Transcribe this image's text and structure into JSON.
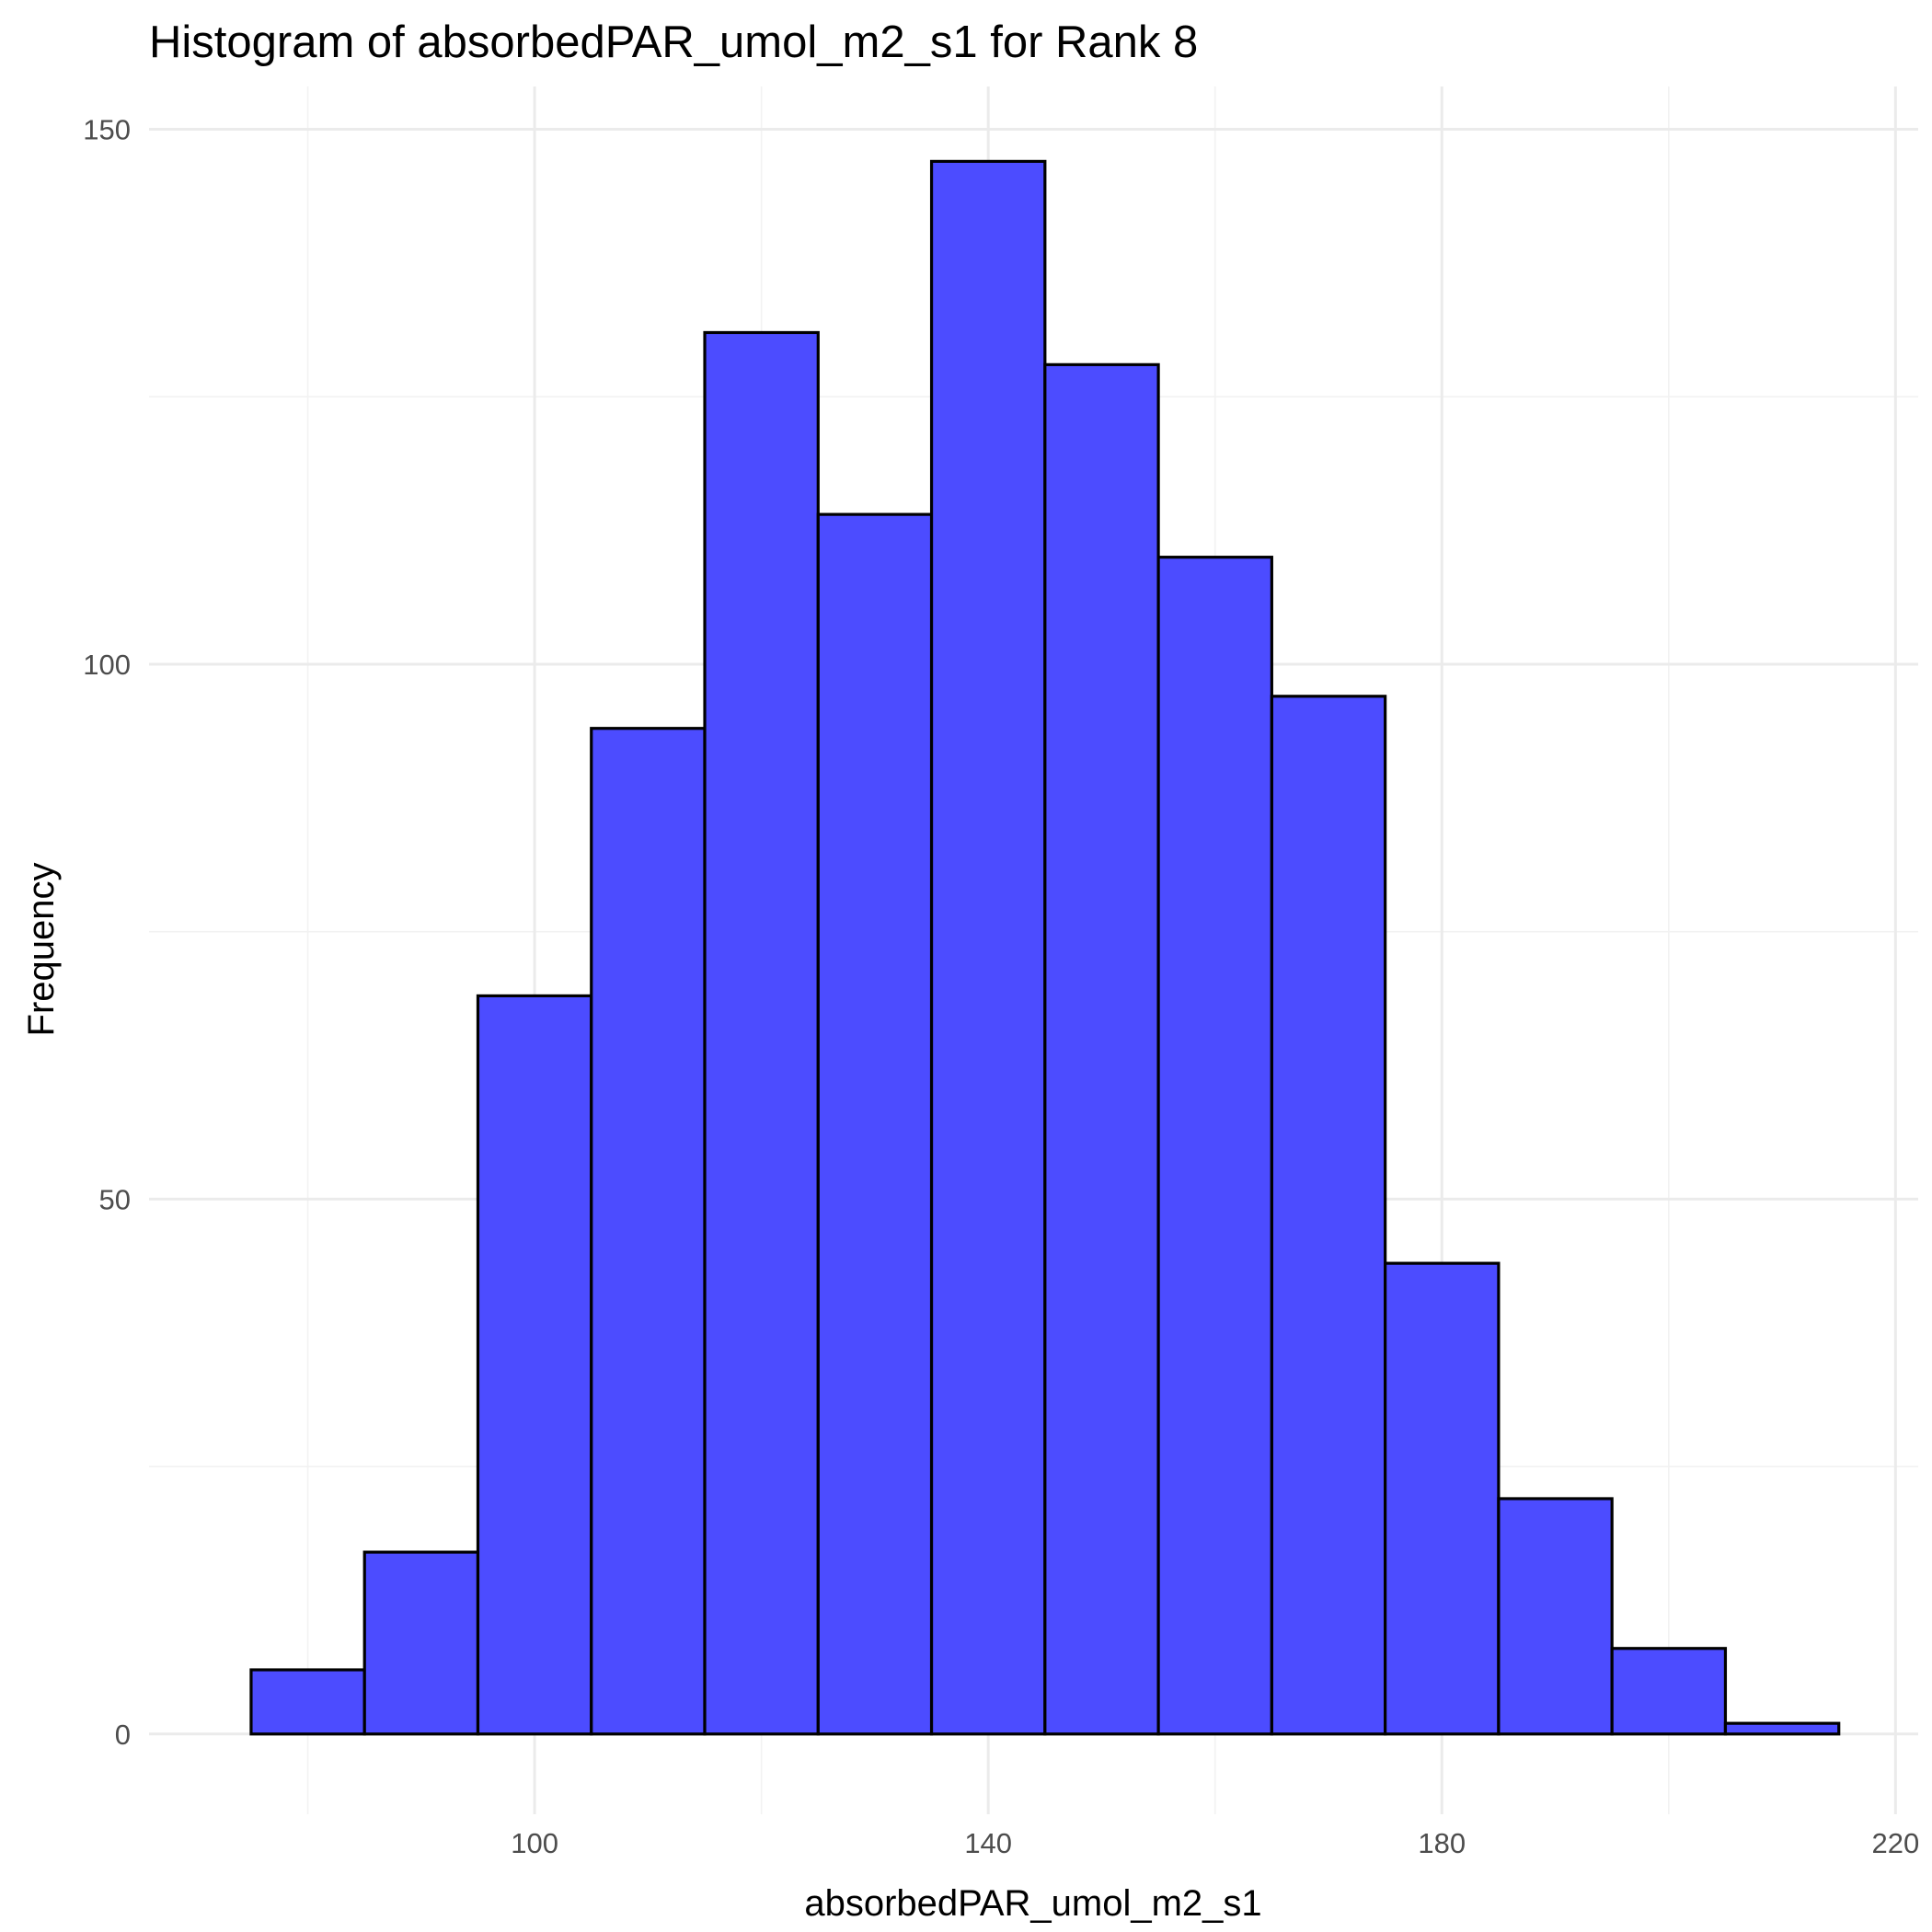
{
  "chart_data": {
    "type": "bar",
    "title": "Histogram of absorbedPAR_umol_m2_s1 for Rank 8",
    "xlabel": "absorbedPAR_umol_m2_s1",
    "ylabel": "Frequency",
    "xlim": [
      66,
      222
    ],
    "ylim": [
      -7.5,
      154
    ],
    "x_ticks": [
      100,
      140,
      180,
      220
    ],
    "y_ticks": [
      0,
      50,
      100,
      150
    ],
    "x_minor_ticks": [
      80,
      120,
      160,
      200
    ],
    "y_minor_ticks": [
      25,
      75,
      125
    ],
    "grid": true,
    "bin_width": 10,
    "bins": [
      {
        "x0": 75,
        "x1": 85,
        "count": 6
      },
      {
        "x0": 85,
        "x1": 95,
        "count": 17
      },
      {
        "x0": 95,
        "x1": 105,
        "count": 69
      },
      {
        "x0": 105,
        "x1": 115,
        "count": 94
      },
      {
        "x0": 115,
        "x1": 125,
        "count": 131
      },
      {
        "x0": 125,
        "x1": 135,
        "count": 114
      },
      {
        "x0": 135,
        "x1": 145,
        "count": 147
      },
      {
        "x0": 145,
        "x1": 155,
        "count": 128
      },
      {
        "x0": 155,
        "x1": 165,
        "count": 110
      },
      {
        "x0": 165,
        "x1": 175,
        "count": 97
      },
      {
        "x0": 175,
        "x1": 185,
        "count": 44
      },
      {
        "x0": 185,
        "x1": 195,
        "count": 22
      },
      {
        "x0": 195,
        "x1": 205,
        "count": 8
      },
      {
        "x0": 205,
        "x1": 215,
        "count": 1
      }
    ],
    "fill_color": "#4c4cff",
    "edge_color": "#000000"
  }
}
